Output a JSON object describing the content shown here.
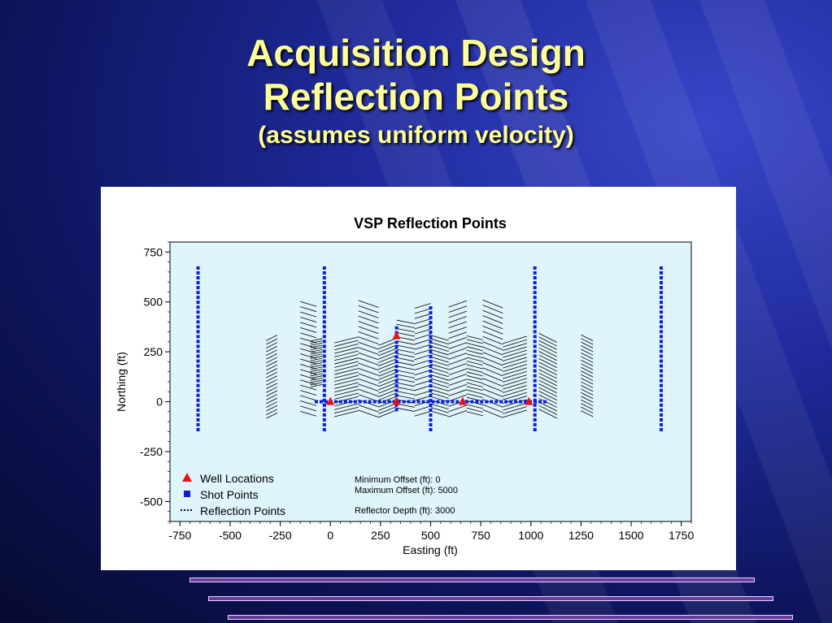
{
  "slide": {
    "title_line1": "Acquisition Design",
    "title_line2": "Reflection Points",
    "subtitle": "(assumes uniform velocity)"
  },
  "colors": {
    "title_text": "#ffff99",
    "plot_background": "#dff4fb",
    "shot_points": "#0a1fd8",
    "well_locations": "#e81010",
    "reflection_points": "#000000",
    "accent_bars": "#6b3a9c"
  },
  "chart_data": {
    "type": "scatter",
    "title": "VSP Reflection Points",
    "xlabel": "Easting (ft)",
    "ylabel": "Northing (ft)",
    "xlim": [
      -800,
      1800
    ],
    "ylim": [
      -600,
      800
    ],
    "xticks": [
      -750,
      -500,
      -250,
      0,
      250,
      500,
      750,
      1000,
      1250,
      1500,
      1750
    ],
    "yticks": [
      750,
      500,
      250,
      0,
      -250,
      -500
    ],
    "grid": false,
    "legend_position": "bottom-left",
    "legend": [
      {
        "label": "Well Locations",
        "marker": "triangle"
      },
      {
        "label": "Shot Points",
        "marker": "square"
      },
      {
        "label": "Reflection Points",
        "marker": "dots"
      }
    ],
    "annotations": [
      "Minimum Offset (ft): 0",
      "Maximum Offset (ft): 5000",
      "Reflector Depth (ft): 3000"
    ],
    "well_locations": [
      {
        "x": 0,
        "y": 0
      },
      {
        "x": 330,
        "y": 0
      },
      {
        "x": 330,
        "y": 330
      },
      {
        "x": 660,
        "y": 0
      },
      {
        "x": 990,
        "y": 0
      }
    ],
    "shot_lines": [
      {
        "x1": -660,
        "y1": -140,
        "x2": -660,
        "y2": 670
      },
      {
        "x1": -30,
        "y1": -140,
        "x2": -30,
        "y2": 670
      },
      {
        "x1": 330,
        "y1": -40,
        "x2": 330,
        "y2": 370
      },
      {
        "x1": 500,
        "y1": -140,
        "x2": 500,
        "y2": 470
      },
      {
        "x1": 1020,
        "y1": -140,
        "x2": 1020,
        "y2": 670
      },
      {
        "x1": 1650,
        "y1": -140,
        "x2": 1650,
        "y2": 670
      },
      {
        "x1": -70,
        "y1": 0,
        "x2": 1070,
        "y2": 0
      }
    ],
    "reflection_clusters": [
      {
        "x1": -320,
        "x2": -265,
        "y1": -70,
        "y2": 320,
        "slope": -0.5
      },
      {
        "x1": -150,
        "x2": -70,
        "y1": -60,
        "y2": 490,
        "slope": 0.3
      },
      {
        "x1": -100,
        "x2": -40,
        "y1": 80,
        "y2": 310,
        "slope": -0.2
      },
      {
        "x1": 20,
        "x2": 140,
        "y1": -60,
        "y2": 310,
        "slope": -0.25
      },
      {
        "x1": 140,
        "x2": 240,
        "y1": -60,
        "y2": 490,
        "slope": 0.35
      },
      {
        "x1": 240,
        "x2": 330,
        "y1": -60,
        "y2": 300,
        "slope": -0.4
      },
      {
        "x1": 330,
        "x2": 420,
        "y1": -40,
        "y2": 400,
        "slope": 0.2
      },
      {
        "x1": 420,
        "x2": 500,
        "y1": -60,
        "y2": 480,
        "slope": -0.3
      },
      {
        "x1": 500,
        "x2": 590,
        "y1": -60,
        "y2": 320,
        "slope": 0.3
      },
      {
        "x1": 590,
        "x2": 680,
        "y1": -60,
        "y2": 490,
        "slope": -0.35
      },
      {
        "x1": 680,
        "x2": 760,
        "y1": -60,
        "y2": 320,
        "slope": 0.25
      },
      {
        "x1": 760,
        "x2": 860,
        "y1": -60,
        "y2": 490,
        "slope": 0.4
      },
      {
        "x1": 860,
        "x2": 980,
        "y1": -60,
        "y2": 310,
        "slope": -0.3
      },
      {
        "x1": 1040,
        "x2": 1130,
        "y1": -60,
        "y2": 320,
        "slope": 0.5
      },
      {
        "x1": 1250,
        "x2": 1310,
        "y1": -60,
        "y2": 320,
        "slope": 0.5
      }
    ]
  }
}
